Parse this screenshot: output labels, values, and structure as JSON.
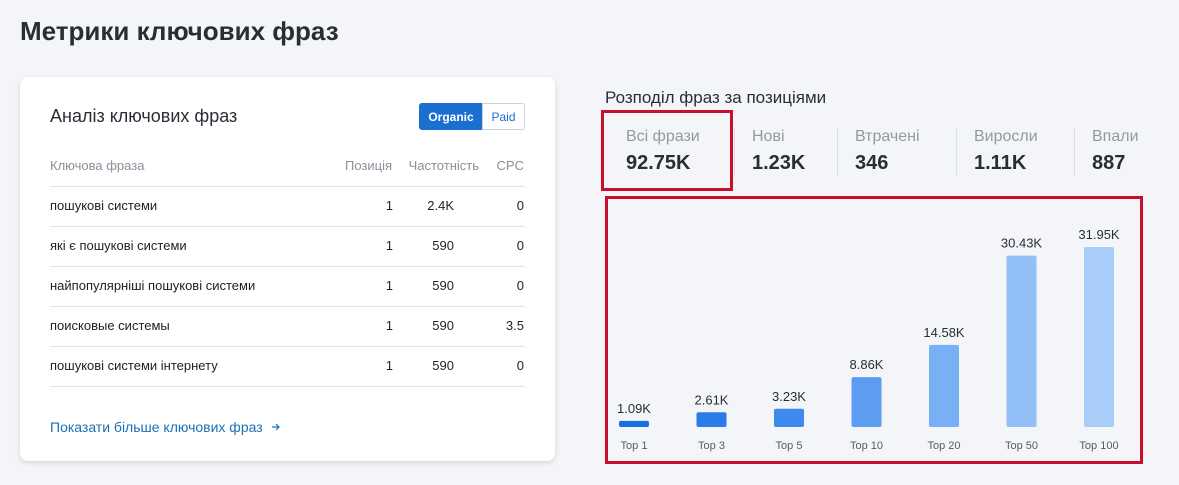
{
  "page": {
    "title": "Метрики ключових фраз"
  },
  "keywords_card": {
    "title": "Аналіз ключових фраз",
    "toggle": [
      "Organic",
      "Paid"
    ],
    "table": {
      "header": [
        "Ключова фраза",
        "Позиція",
        "Частотність",
        "CPC"
      ],
      "rows": [
        [
          "пошукові системи",
          "1",
          "2.4K",
          "0"
        ],
        [
          "які є пошукові системи",
          "1",
          "590",
          "0"
        ],
        [
          "найпопулярніші пошукові системи",
          "1",
          "590",
          "0"
        ],
        [
          "поисковые системы",
          "1",
          "590",
          "3.5"
        ],
        [
          "пошукові системи інтернету",
          "1",
          "590",
          "0"
        ]
      ]
    },
    "link": "Показати більше ключових фраз"
  },
  "positions": {
    "title": "Розподіл фраз за позиціями",
    "metrics": [
      {
        "label": "Всі фрази",
        "value": "92.75K"
      },
      {
        "label": "Нові",
        "value": "1.23K"
      },
      {
        "label": "Втрачені",
        "value": "346"
      },
      {
        "label": "Виросли",
        "value": "1.11K"
      },
      {
        "label": "Впали",
        "value": "887"
      }
    ]
  },
  "chart_data": {
    "type": "bar",
    "categories": [
      "Top 1",
      "Top 3",
      "Top 5",
      "Top 10",
      "Top 20",
      "Top 50",
      "Top 100"
    ],
    "values": [
      1090,
      2610,
      3230,
      8860,
      14580,
      30430,
      31950
    ],
    "value_labels": [
      "1.09K",
      "2.61K",
      "3.23K",
      "8.86K",
      "14.58K",
      "30.43K",
      "31.95K"
    ],
    "colors": [
      "#1a6fe0",
      "#2b7ce8",
      "#3e89ee",
      "#5c9df2",
      "#78b0f5",
      "#92bff7",
      "#a9cdf9"
    ]
  }
}
